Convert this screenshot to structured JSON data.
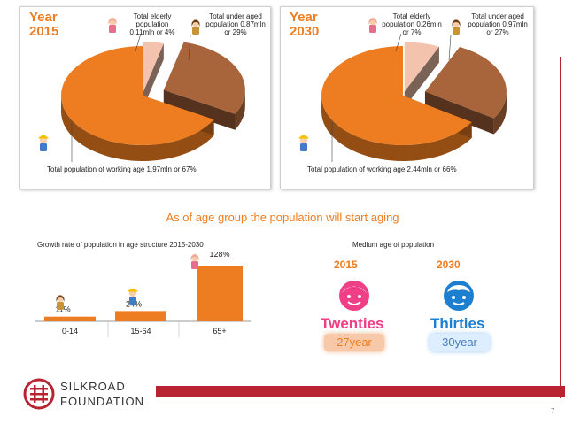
{
  "panels": [
    {
      "year_label": "Year",
      "year": "2015",
      "elderly_caption": "Total elderly population 0.11mln or 4%",
      "under_caption": "Total under aged population 0.87mln or 29%",
      "working_caption": "Total population of working age 1.97mln or 67%"
    },
    {
      "year_label": "Year",
      "year": "2030",
      "elderly_caption": "Total elderly population 0.26mln or 7%",
      "under_caption": "Total under aged population 0.97mln or 27%",
      "working_caption": "Total population of working age 2.44mln or 66%"
    }
  ],
  "headline": "As of age group the population will start aging",
  "growth_title": "Growth rate of population in age structure 2015-2030",
  "median_title": "Medium age of population",
  "median": [
    {
      "year": "2015",
      "word": "Twenties",
      "years": "27year",
      "color": "#ef3f86"
    },
    {
      "year": "2030",
      "word": "Thirties",
      "years": "30year",
      "color": "#1d7fd0"
    }
  ],
  "brand": {
    "line1": "SILKROAD",
    "line2": "FOUNDATION",
    "color": "#b72331"
  },
  "page_number": "7",
  "chart_data": [
    {
      "type": "pie",
      "title": "Year 2015",
      "labels": [
        "Total elderly population 0.11mln or 4%",
        "Total under aged population 0.87mln or 29%",
        "Total population of working age 1.97mln or 67%"
      ],
      "values": [
        4,
        29,
        67
      ],
      "colors": [
        "#f4c3ad",
        "#a8643a",
        "#ee7d21"
      ]
    },
    {
      "type": "pie",
      "title": "Year 2030",
      "labels": [
        "Total elderly population 0.26mln or 7%",
        "Total under aged population 0.97mln or 27%",
        "Total population of working age 2.44mln or 66%"
      ],
      "values": [
        7,
        27,
        66
      ],
      "colors": [
        "#f4c3ad",
        "#a8643a",
        "#ee7d21"
      ]
    },
    {
      "type": "bar",
      "title": "Growth rate of population in age structure 2015-2030",
      "categories": [
        "0-14",
        "15-64",
        "65+"
      ],
      "values": [
        11,
        24,
        128
      ],
      "value_labels": [
        "11%",
        "24%",
        "128%"
      ],
      "ylim": [
        0,
        128
      ],
      "color": "#ee7d21"
    }
  ]
}
